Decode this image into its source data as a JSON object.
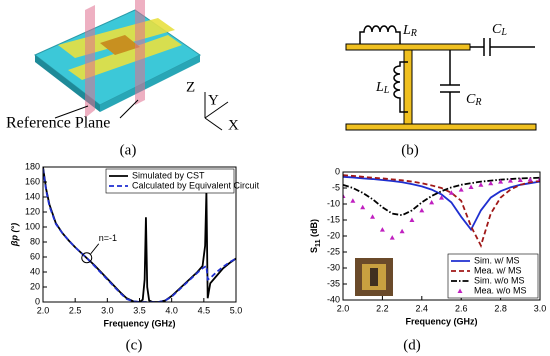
{
  "panel_labels": [
    "(a)",
    "(b)",
    "(c)",
    "(d)"
  ],
  "diagram_a": {
    "reference_plane": "Reference Plane",
    "axes": [
      "Z",
      "Y",
      "X"
    ]
  },
  "diagram_b": {
    "components": [
      {
        "main": "L",
        "sub": "R"
      },
      {
        "main": "C",
        "sub": "L"
      },
      {
        "main": "L",
        "sub": "L"
      },
      {
        "main": "C",
        "sub": "R"
      }
    ]
  },
  "chart_data": [
    {
      "type": "line",
      "x_label": "Frequency (GHz)",
      "y_label": "βp (°)",
      "x": [
        2.0,
        2.05,
        2.1,
        2.2,
        2.3,
        2.4,
        2.5,
        2.6,
        2.7,
        2.8,
        2.9,
        3.0,
        3.1,
        3.2,
        3.3,
        3.4,
        3.5,
        3.55,
        3.58,
        3.6,
        3.62,
        3.65,
        3.7,
        3.8,
        3.9,
        4.0,
        4.1,
        4.2,
        4.3,
        4.4,
        4.48,
        4.52,
        4.54,
        4.56,
        4.6,
        4.7,
        4.8,
        4.9,
        5.0
      ],
      "series": [
        {
          "name": "Simulated by CST",
          "color": "#000000",
          "line_style": "solid",
          "values": [
            180,
            150,
            130,
            105,
            92,
            82,
            73,
            65,
            57,
            49,
            40,
            31,
            22,
            13,
            5,
            1,
            0,
            3,
            30,
            113,
            20,
            2,
            0,
            0,
            2,
            8,
            16,
            24,
            32,
            40,
            48,
            75,
            148,
            5,
            25,
            35,
            45,
            52,
            58
          ]
        },
        {
          "name": "Calculated  by Equivalent Circuit",
          "color": "#1f2fd0",
          "line_style": "dashed",
          "values": [
            178,
            148,
            128,
            104,
            92,
            82,
            73,
            65,
            57,
            48,
            39,
            30,
            21,
            12,
            4,
            1,
            0,
            0,
            0,
            0,
            0,
            0,
            0,
            0,
            2,
            7,
            15,
            23,
            31,
            39,
            45,
            47,
            48,
            30,
            32,
            40,
            47,
            53,
            58
          ]
        }
      ],
      "xlim": [
        2.0,
        5.0
      ],
      "xticks": [
        {
          "value": 2.0,
          "label": "2.0"
        },
        {
          "value": 2.5,
          "label": "2.5"
        },
        {
          "value": 3.0,
          "label": "3.0"
        },
        {
          "value": 3.5,
          "label": "3.5"
        },
        {
          "value": 4.0,
          "label": "4.0"
        },
        {
          "value": 4.5,
          "label": "4.5"
        },
        {
          "value": 5.0,
          "label": "5.0"
        }
      ],
      "ylim": [
        0,
        180
      ],
      "yticks": [
        0,
        20,
        40,
        60,
        80,
        100,
        120,
        140,
        160,
        180
      ],
      "grid": false,
      "legend": "upper-right",
      "annotation": {
        "text": "n=-1",
        "x": 2.68,
        "y": 59
      }
    },
    {
      "type": "line",
      "x_label": "Frequency (GHz)",
      "y_label": {
        "main": "S",
        "sub": "11",
        "suffix": " (dB)"
      },
      "x": [
        2.0,
        2.05,
        2.1,
        2.15,
        2.2,
        2.25,
        2.3,
        2.35,
        2.4,
        2.45,
        2.5,
        2.55,
        2.6,
        2.65,
        2.7,
        2.75,
        2.8,
        2.85,
        2.9,
        2.95,
        3.0
      ],
      "series": [
        {
          "name": "Sim. w/ MS",
          "color": "#1f2fd0",
          "line_style": "solid",
          "values": [
            -1.5,
            -1.7,
            -2,
            -2.2,
            -2.5,
            -2.8,
            -3.2,
            -3.8,
            -4.5,
            -5.5,
            -7,
            -9.5,
            -14,
            -18,
            -12,
            -8,
            -6,
            -4.8,
            -4,
            -3.5,
            -3
          ]
        },
        {
          "name": "Mea. w/ MS",
          "color": "#a01818",
          "line_style": "dashed",
          "values": [
            -1,
            -1.2,
            -1.5,
            -1.8,
            -2,
            -2.3,
            -2.6,
            -3,
            -3.5,
            -4.2,
            -5,
            -6.5,
            -9,
            -17,
            -23,
            -13,
            -8,
            -5.5,
            -4,
            -3.2,
            -2.8
          ]
        },
        {
          "name": "Sim. w/o MS",
          "color": "#000000",
          "line_style": "dashdot",
          "values": [
            -4,
            -5,
            -6.5,
            -8.5,
            -11,
            -13,
            -13.5,
            -12,
            -9.5,
            -7.5,
            -6,
            -4.8,
            -4,
            -3.5,
            -3,
            -2.7,
            -2.4,
            -2.2,
            -2,
            -1.9,
            -1.8
          ]
        },
        {
          "name": "Mea. w/o MS",
          "color": "#c020c0",
          "marker": "triangle",
          "values": [
            -7.5,
            -9,
            -11,
            -14,
            -18,
            -20.5,
            -18.5,
            -15,
            -12,
            -9.5,
            -8,
            -6.5,
            -5.5,
            -4.7,
            -4,
            -3.5,
            -3,
            -2.7,
            -2.5,
            -2.3,
            -2.2
          ]
        }
      ],
      "xlim": [
        2.0,
        3.0
      ],
      "xticks": [
        {
          "value": 2.0,
          "label": "2.0"
        },
        {
          "value": 2.2,
          "label": "2.2"
        },
        {
          "value": 2.4,
          "label": "2.4"
        },
        {
          "value": 2.6,
          "label": "2.6"
        },
        {
          "value": 2.8,
          "label": "2.8"
        },
        {
          "value": 3.0,
          "label": "3.0"
        }
      ],
      "ylim": [
        -40,
        0
      ],
      "yticks": [
        0,
        -5,
        -10,
        -15,
        -20,
        -25,
        -30,
        -35,
        -40
      ],
      "grid": false,
      "legend": "lower-right"
    }
  ]
}
